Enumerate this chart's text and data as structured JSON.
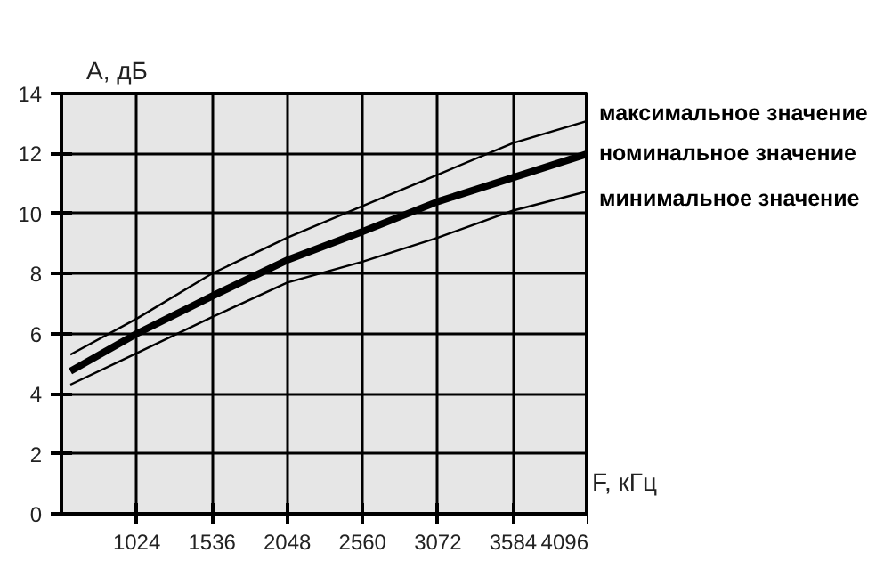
{
  "chart_data": {
    "type": "line",
    "xlabel": "F, кГц",
    "ylabel": "A, дБ",
    "x": [
      573,
      1024,
      1536,
      2048,
      2560,
      3072,
      3584,
      4096
    ],
    "series": [
      {
        "name": "максимальное значение",
        "color": "#000000",
        "values": [
          5.3,
          6.5,
          8.0,
          9.2,
          10.25,
          11.3,
          12.35,
          13.1
        ]
      },
      {
        "name": "номинальное значение",
        "color": "#000000",
        "values": [
          4.75,
          6.0,
          7.25,
          8.45,
          9.4,
          10.4,
          11.2,
          12.0
        ]
      },
      {
        "name": "минимальное значение",
        "color": "#000000",
        "values": [
          4.3,
          5.35,
          6.55,
          7.7,
          8.4,
          9.2,
          10.1,
          10.75
        ]
      }
    ],
    "xlim": [
      512,
      4096
    ],
    "ylim": [
      0,
      14
    ],
    "xticks": [
      1024,
      1536,
      2048,
      2560,
      3072,
      3584,
      4096
    ],
    "yticks": [
      0,
      2,
      4,
      6,
      8,
      10,
      12,
      14
    ],
    "grid": true,
    "legend": false,
    "marker": "none",
    "line_style": "solid"
  }
}
